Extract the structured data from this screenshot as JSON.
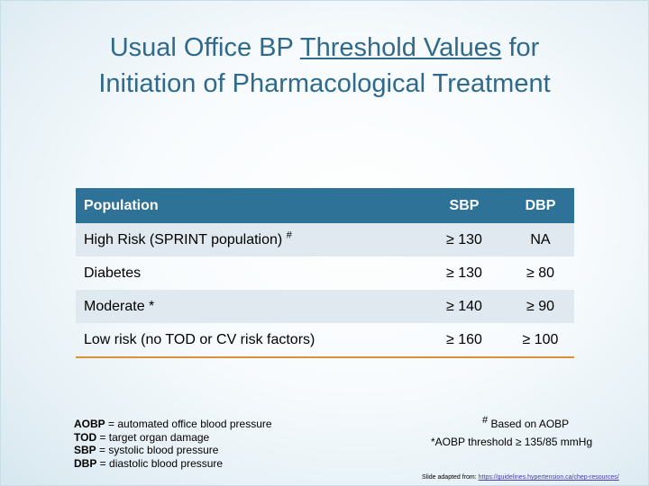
{
  "title": {
    "part1": "Usual Office BP ",
    "underlined": "Threshold Values",
    "part2": " for",
    "line2": "Initiation of Pharmacological Treatment"
  },
  "table": {
    "headers": [
      "Population",
      "SBP",
      "DBP"
    ],
    "rows": [
      {
        "population": "High Risk (SPRINT population) ",
        "marker": "#",
        "sbp": "≥ 130",
        "dbp": "NA"
      },
      {
        "population": "Diabetes",
        "marker": "",
        "sbp": "≥ 130",
        "dbp": "≥ 80"
      },
      {
        "population": "Moderate *",
        "marker": "",
        "sbp": "≥ 140",
        "dbp": "≥ 90"
      },
      {
        "population": "Low risk (no TOD or CV risk factors)",
        "marker": "",
        "sbp": "≥ 160",
        "dbp": "≥ 100"
      }
    ]
  },
  "definitions": [
    {
      "abbr": "AOBP",
      "text": " = automated office blood pressure"
    },
    {
      "abbr": "TOD",
      "text": " = target organ damage"
    },
    {
      "abbr": "SBP",
      "text": " = systolic blood pressure"
    },
    {
      "abbr": "DBP",
      "text": " = diastolic blood pressure"
    }
  ],
  "notes": {
    "based_marker": "#",
    "based_text": " Based on AOBP",
    "aobp_threshold": "*AOBP threshold ≥ 135/85 mmHg"
  },
  "source": {
    "prefix": "Slide adapted from: ",
    "link": "https://guidelines.hypertension.ca/chep-resources/"
  },
  "colors": {
    "header_bg": "#2e7297",
    "title": "#2f6a8c",
    "row_shade": "#dfe9ef",
    "bottom_rule": "#d9913a"
  }
}
